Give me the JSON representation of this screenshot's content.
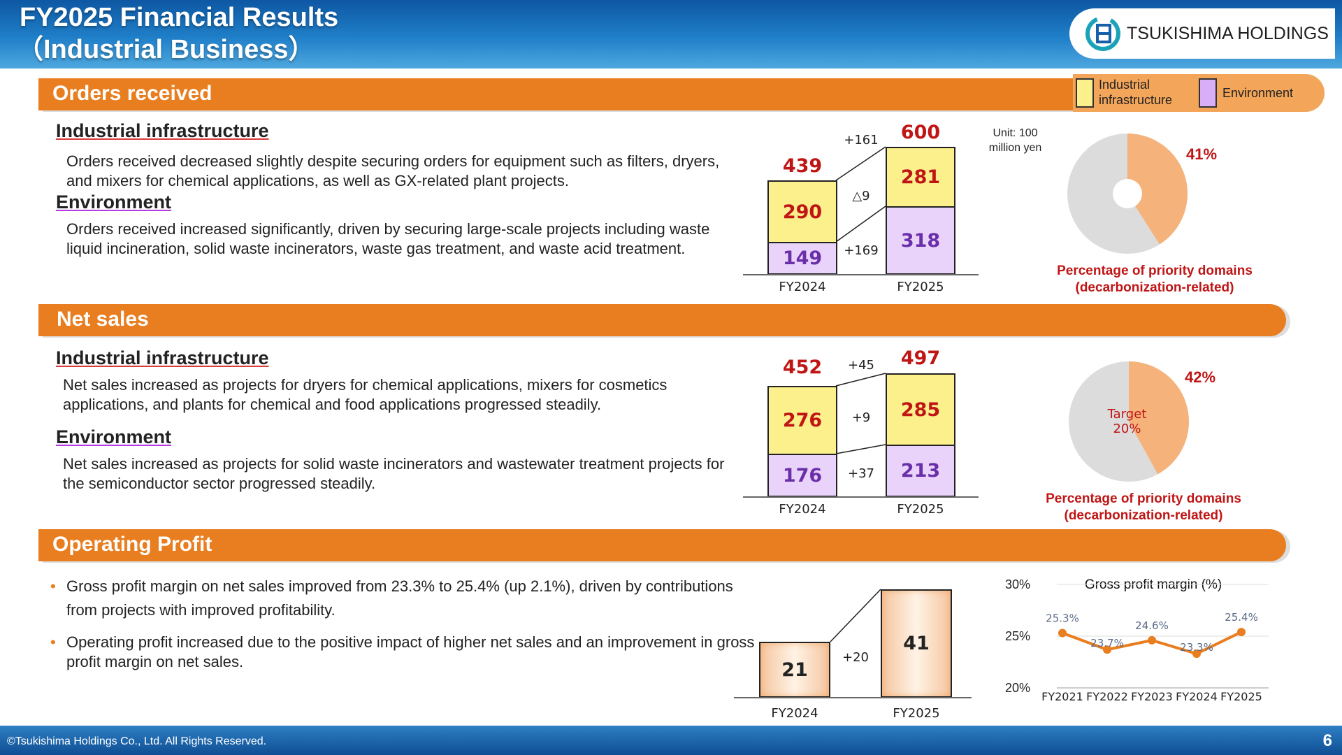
{
  "header": {
    "title_line1": "FY2025 Financial Results",
    "title_line2": "（Industrial Business）",
    "logo_text": "TSUKISHIMA HOLDINGS"
  },
  "legend": {
    "industrial": "Industrial infrastructure",
    "environment": "Environment"
  },
  "orders": {
    "section_title": "Orders received",
    "industrial_heading": "Industrial infrastructure",
    "industrial_text": "Orders received decreased slightly despite securing orders for equipment such as filters, dryers, and mixers for chemical applications, as well as GX-related plant projects.",
    "environment_heading": "Environment",
    "environment_text": "Orders received increased significantly, driven by securing large-scale projects including waste liquid incineration, solid waste incinerators, waste gas treatment, and waste acid treatment.",
    "unit": "Unit: 100 million yen",
    "pie_pct": "41%",
    "pie_caption": "Percentage of priority domains (decarbonization-related)"
  },
  "sales": {
    "section_title": "Net sales",
    "industrial_heading": "Industrial infrastructure",
    "industrial_text": "Net sales increased as projects for dryers for chemical applications, mixers for cosmetics applications, and plants for chemical and food applications progressed steadily.",
    "environment_heading": "Environment",
    "environment_text": "Net sales increased as projects for solid waste incinerators and wastewater treatment projects for the semiconductor sector progressed steadily.",
    "pie_pct": "42%",
    "pie_target": "Target 20%",
    "pie_caption": "Percentage of priority domains (decarbonization-related)"
  },
  "profit": {
    "section_title": "Operating Profit",
    "bullet1": "Gross profit margin on net sales improved from 23.3% to 25.4% (up 2.1%), driven by contributions from projects with improved profitability.",
    "bullet2": "Operating profit increased due to the positive impact of higher net sales and an improvement in gross profit margin on net sales."
  },
  "footer": {
    "copyright": "©Tsukishima Holdings Co., Ltd. All Rights Reserved.",
    "page": "6"
  },
  "colors": {
    "orange": "#e87e1f",
    "industrial": "#fbf08c",
    "environment": "#e9d3fb",
    "total_red": "#c01515"
  },
  "chart_data": [
    {
      "type": "bar",
      "name": "orders",
      "stacked": true,
      "categories": [
        "FY2024",
        "FY2025"
      ],
      "series": [
        {
          "name": "Environment",
          "values": [
            149,
            318
          ]
        },
        {
          "name": "Industrial infrastructure",
          "values": [
            290,
            281
          ]
        }
      ],
      "totals": [
        439,
        600
      ],
      "deltas": {
        "total": "+161",
        "industrial": "△9",
        "environment": "+169"
      }
    },
    {
      "type": "pie",
      "name": "orders-priority",
      "values": [
        41,
        59
      ],
      "label": "41%"
    },
    {
      "type": "bar",
      "name": "sales",
      "stacked": true,
      "categories": [
        "FY2024",
        "FY2025"
      ],
      "series": [
        {
          "name": "Environment",
          "values": [
            176,
            213
          ]
        },
        {
          "name": "Industrial infrastructure",
          "values": [
            276,
            285
          ]
        }
      ],
      "totals": [
        452,
        497
      ],
      "deltas": {
        "total": "+45",
        "industrial": "+9",
        "environment": "+37"
      }
    },
    {
      "type": "pie",
      "name": "sales-priority",
      "values": [
        42,
        58
      ],
      "label": "42%",
      "target": "Target 20%"
    },
    {
      "type": "bar",
      "name": "operating-profit",
      "categories": [
        "FY2024",
        "FY2025"
      ],
      "values": [
        21,
        41
      ],
      "delta": "+20"
    },
    {
      "type": "line",
      "name": "gross-margin",
      "title": "Gross profit margin (%)",
      "categories": [
        "FY2021",
        "FY2022",
        "FY2023",
        "FY2024",
        "FY2025"
      ],
      "values": [
        25.3,
        23.7,
        24.6,
        23.3,
        25.4
      ],
      "labels": [
        "25.3%",
        "23.7%",
        "24.6%",
        "23.3%",
        "25.4%"
      ],
      "ylim": [
        20,
        30
      ],
      "yticks": [
        "20%",
        "25%",
        "30%"
      ]
    }
  ]
}
